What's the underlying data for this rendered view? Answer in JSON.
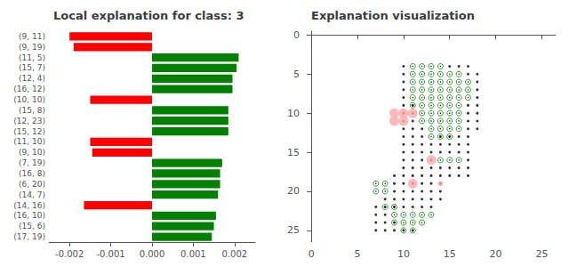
{
  "chart_data": [
    {
      "type": "bar",
      "orientation": "horizontal",
      "title": "Local explanation for class: 3",
      "categories": [
        "(9, 11)",
        "(9, 19)",
        "(11, 5)",
        "(15, 7)",
        "(12, 4)",
        "(16, 12)",
        "(10, 10)",
        "(15, 8)",
        "(12, 23)",
        "(15, 12)",
        "(11, 10)",
        "(9, 10)",
        "(7, 19)",
        "(16, 8)",
        "(6, 20)",
        "(14, 7)",
        "(14, 16)",
        "(16, 10)",
        "(15, 6)",
        "(17, 19)"
      ],
      "values": [
        -0.002,
        -0.0019,
        0.0021,
        0.00205,
        0.00195,
        0.00195,
        -0.0015,
        0.00185,
        0.00185,
        0.00185,
        -0.0015,
        -0.00145,
        0.0017,
        0.00165,
        0.00165,
        0.0016,
        -0.00165,
        0.00155,
        0.0015,
        0.00145
      ],
      "colors": [
        "#ff0000",
        "#ff0000",
        "#008000",
        "#008000",
        "#008000",
        "#008000",
        "#ff0000",
        "#008000",
        "#008000",
        "#008000",
        "#ff0000",
        "#ff0000",
        "#008000",
        "#008000",
        "#008000",
        "#008000",
        "#ff0000",
        "#008000",
        "#008000",
        "#008000"
      ],
      "xlim": [
        -0.0025,
        0.0025
      ],
      "xticks": [
        -0.002,
        -0.001,
        {
          "value": 0,
          "label": "0.000"
        },
        0.001,
        0.002
      ],
      "grid": false
    },
    {
      "type": "scatter",
      "title": "Explanation visualization",
      "xlim": [
        -0.5,
        26.5
      ],
      "ylim": [
        26.5,
        -0.5
      ],
      "xticks": [
        0,
        5,
        10,
        15,
        20,
        25
      ],
      "yticks": [
        0,
        5,
        10,
        15,
        20,
        25
      ],
      "grid": false,
      "series": [
        {
          "color": "#000000",
          "marker": "point",
          "x": [
            10,
            15,
            16,
            17,
            10,
            17,
            18,
            10,
            18,
            10,
            18,
            10,
            18,
            10,
            11,
            17,
            18,
            10,
            11,
            17,
            18,
            10,
            11,
            17,
            18,
            10,
            11,
            12,
            17,
            18,
            10,
            11,
            12,
            14,
            15,
            16,
            17,
            10,
            11,
            12,
            13,
            14,
            15,
            16,
            17,
            10,
            11,
            12,
            13,
            14,
            15,
            16,
            17,
            10,
            11,
            12,
            13,
            17,
            10,
            11,
            12,
            13,
            14,
            15,
            16,
            17,
            9,
            10,
            11,
            12,
            13,
            14,
            15,
            16,
            17,
            9,
            10,
            11,
            12,
            13,
            14,
            9,
            10,
            11,
            12,
            13,
            14,
            8,
            9,
            10,
            11,
            12,
            13,
            14,
            7,
            8,
            9,
            10,
            11,
            12,
            13,
            7,
            8,
            7,
            8,
            9,
            7,
            8,
            9,
            10,
            11
          ],
          "values": [
            4,
            4,
            4,
            4,
            5,
            5,
            5,
            6,
            6,
            7,
            7,
            8,
            8,
            9,
            9,
            9,
            9,
            10,
            10,
            10,
            10,
            11,
            11,
            11,
            11,
            12,
            12,
            12,
            12,
            12,
            13,
            13,
            13,
            13,
            13,
            13,
            13,
            14,
            14,
            14,
            14,
            14,
            14,
            14,
            14,
            15,
            15,
            15,
            15,
            15,
            15,
            15,
            15,
            16,
            16,
            16,
            16,
            16,
            17,
            17,
            17,
            17,
            17,
            17,
            17,
            17,
            18,
            18,
            18,
            18,
            18,
            18,
            18,
            18,
            18,
            19,
            19,
            19,
            19,
            19,
            19,
            20,
            20,
            20,
            20,
            20,
            20,
            21,
            21,
            21,
            21,
            21,
            21,
            21,
            22,
            22,
            22,
            22,
            22,
            22,
            22,
            23,
            23,
            24,
            24,
            24,
            25,
            25,
            25,
            25,
            25
          ]
        },
        {
          "color": "#008000",
          "marker": "ring",
          "x": [
            11,
            12,
            13,
            14,
            11,
            12,
            13,
            14,
            15,
            16,
            11,
            12,
            13,
            14,
            15,
            16,
            17,
            11,
            12,
            13,
            14,
            15,
            16,
            17,
            11,
            12,
            13,
            14,
            15,
            16,
            17,
            11,
            12,
            13,
            14,
            15,
            16,
            12,
            13,
            14,
            15,
            16,
            12,
            13,
            14,
            15,
            16,
            13,
            14,
            15,
            16,
            13,
            14,
            15,
            14,
            15,
            16,
            7,
            8,
            7,
            8,
            8,
            9,
            9,
            10,
            11,
            12,
            13,
            9,
            10,
            11,
            12,
            10,
            11
          ],
          "values": [
            4,
            4,
            4,
            4,
            5,
            5,
            5,
            5,
            5,
            5,
            6,
            6,
            6,
            6,
            6,
            6,
            6,
            7,
            7,
            7,
            7,
            7,
            7,
            7,
            8,
            8,
            8,
            8,
            8,
            8,
            8,
            9,
            9,
            9,
            9,
            9,
            9,
            10,
            10,
            10,
            10,
            10,
            11,
            11,
            11,
            11,
            11,
            12,
            12,
            12,
            12,
            13,
            13,
            13,
            16,
            16,
            16,
            19,
            19,
            20,
            20,
            22,
            22,
            23,
            23,
            23,
            23,
            23,
            24,
            24,
            24,
            24,
            25,
            25
          ]
        },
        {
          "color": "#ffaaaa",
          "marker": "circle",
          "x": [
            9,
            10,
            11,
            9,
            10,
            13,
            11
          ],
          "values": [
            10,
            10,
            10,
            11,
            11,
            16,
            19
          ]
        },
        {
          "color": "#ffaaaa",
          "marker": "small_circle",
          "x": [
            14
          ],
          "values": [
            19
          ]
        }
      ]
    }
  ]
}
